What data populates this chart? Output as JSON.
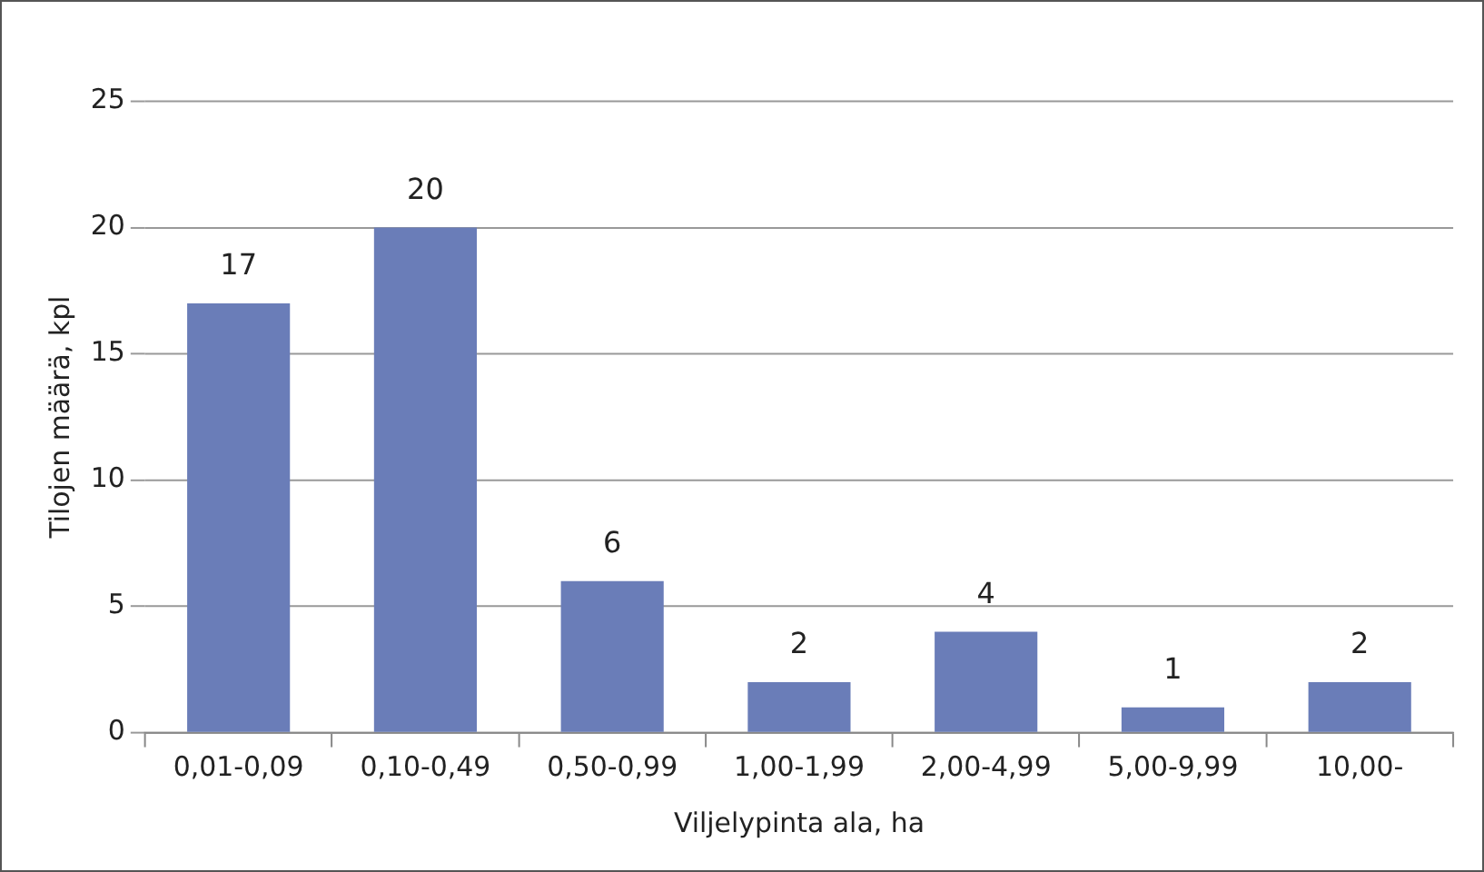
{
  "chart_data": {
    "type": "bar",
    "xlabel": "Viljelypinta ala, ha",
    "ylabel": "Tilojen määrä, kpl",
    "categories": [
      "0,01-0,09",
      "0,10-0,49",
      "0,50-0,99",
      "1,00-1,99",
      "2,00-4,99",
      "5,00-9,99",
      "10,00-"
    ],
    "values": [
      17,
      20,
      6,
      2,
      4,
      1,
      2
    ],
    "color": "#6a7db8",
    "ylim": [
      0,
      25
    ],
    "yticks": [
      0,
      5,
      10,
      15,
      20,
      25
    ],
    "grid": "y",
    "data_labels": true,
    "legend": false
  }
}
